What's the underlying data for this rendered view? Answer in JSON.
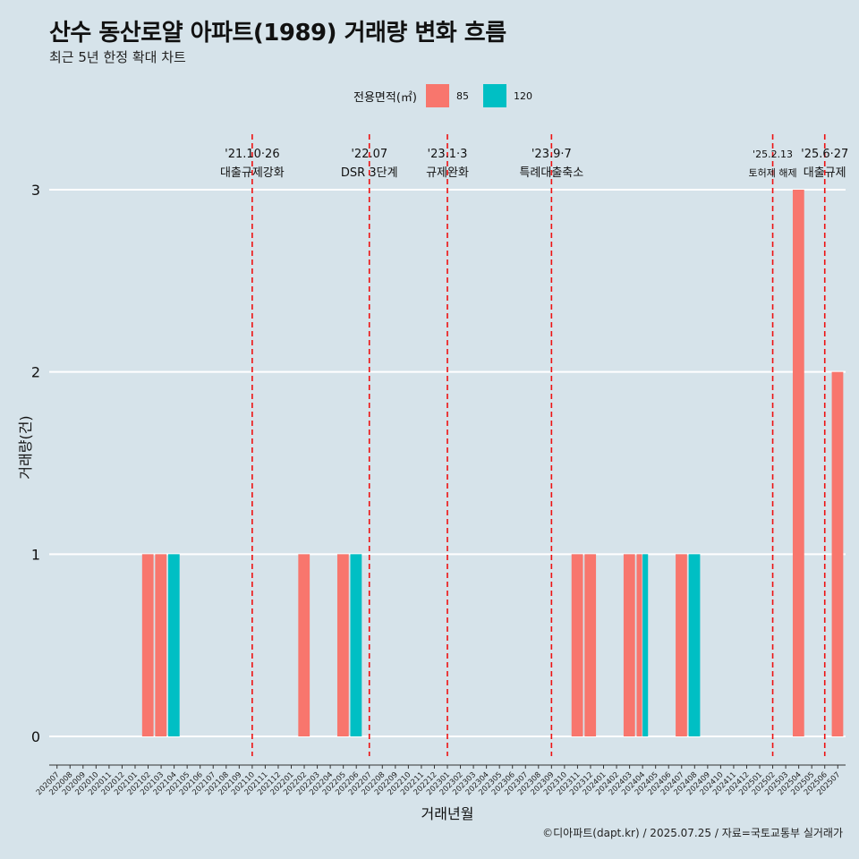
{
  "header": {
    "title": "산수 동산로얄 아파트(1989) 거래량 변화 흐름",
    "subtitle": "최근 5년 한정 확대 차트"
  },
  "legend": {
    "title": "전용면적(㎡)",
    "items": [
      {
        "label": "85",
        "color": "#f8766d"
      },
      {
        "label": "120",
        "color": "#00bfc4"
      }
    ]
  },
  "caption": "©디아파트(dapt.kr) / 2025.07.25 / 자료=국토교통부 실거래가",
  "chart_data": {
    "type": "bar",
    "xlabel": "거래년월",
    "ylabel": "거래량(건)",
    "ylim": [
      0,
      3
    ],
    "yticks": [
      0,
      1,
      2,
      3
    ],
    "grid": true,
    "legend_position": "top",
    "categories": [
      "202007",
      "202008",
      "202009",
      "202010",
      "202011",
      "202012",
      "202101",
      "202102",
      "202103",
      "202104",
      "202105",
      "202106",
      "202107",
      "202108",
      "202109",
      "202110",
      "202111",
      "202112",
      "202201",
      "202202",
      "202203",
      "202204",
      "202205",
      "202206",
      "202207",
      "202208",
      "202209",
      "202210",
      "202211",
      "202212",
      "202301",
      "202302",
      "202303",
      "202304",
      "202305",
      "202306",
      "202307",
      "202308",
      "202309",
      "202310",
      "202311",
      "202312",
      "202401",
      "202402",
      "202403",
      "202404",
      "202405",
      "202406",
      "202407",
      "202408",
      "202409",
      "202410",
      "202411",
      "202412",
      "202501",
      "202502",
      "202503",
      "202504",
      "202505",
      "202506",
      "202507"
    ],
    "series": [
      {
        "name": "85",
        "color": "#f8766d",
        "values": {
          "202102": 1,
          "202103": 1,
          "202202": 1,
          "202205": 1,
          "202311": 1,
          "202312": 1,
          "202403": 1,
          "202404": 1,
          "202407": 1,
          "202504": 3,
          "202507": 2
        }
      },
      {
        "name": "120",
        "color": "#00bfc4",
        "values": {
          "202104": 1,
          "202206": 1,
          "202404": 1,
          "202408": 1
        }
      }
    ],
    "annotations": [
      {
        "month": "202110",
        "date": "'21.10·26",
        "label": "대출규제강화"
      },
      {
        "month": "202207",
        "date": "'22.07",
        "label": "DSR 3단계"
      },
      {
        "month": "202301",
        "date": "'23.1·3",
        "label": "규제완화"
      },
      {
        "month": "202309",
        "date": "'23.9·7",
        "label": "특례대출축소"
      },
      {
        "month": "202502",
        "date": "'25.2.13",
        "label": "토허제 해제"
      },
      {
        "month": "202506",
        "date": "'25.6·27",
        "label": "대출규제"
      }
    ]
  }
}
